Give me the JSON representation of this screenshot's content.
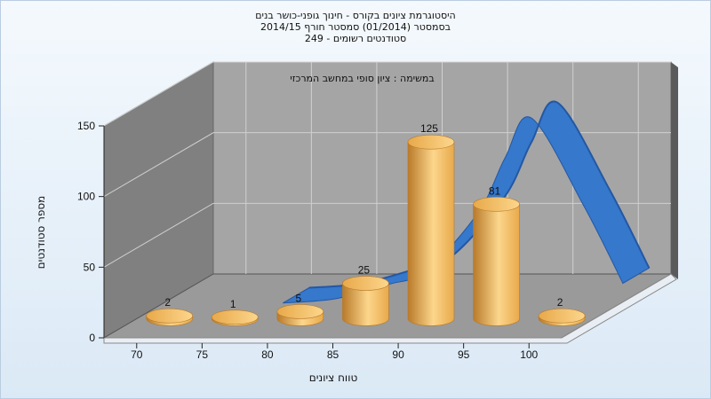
{
  "chart_data": {
    "type": "bar",
    "title_lines": [
      "היסטוגרמת ציונים בקורס - חינוך גופני-כושר בנים",
      "בסמסטר  (01/2014)  סמסטר חורף 2014/15",
      "סטודנטים רשומים - 249"
    ],
    "subtitle": "במשימה : ציון סופי במחשב המרכזי",
    "xlabel": "טווח ציונים",
    "ylabel": "מספר סטודנטים",
    "categories": [
      "70",
      "75",
      "80",
      "85",
      "90",
      "95",
      "100"
    ],
    "values": [
      2,
      1,
      5,
      25,
      125,
      81,
      2
    ],
    "yticks": [
      0,
      50,
      100,
      150
    ],
    "ylim": [
      0,
      150
    ],
    "curve": {
      "type": "line",
      "x": [
        77,
        81,
        85,
        88,
        92,
        94,
        96,
        100,
        103
      ],
      "y": [
        2,
        5,
        15,
        25,
        67,
        105,
        133,
        71,
        16
      ]
    },
    "grid": true,
    "colors": {
      "bar": "#e8a94a",
      "bar_light": "#fcd68c",
      "bar_dark": "#b97a2a",
      "curve": "#3578cc",
      "curve_dark": "#2457a3",
      "back_wall": "#a5a5a5",
      "side_wall": "#808080",
      "floor": "#9a9a9a"
    }
  }
}
